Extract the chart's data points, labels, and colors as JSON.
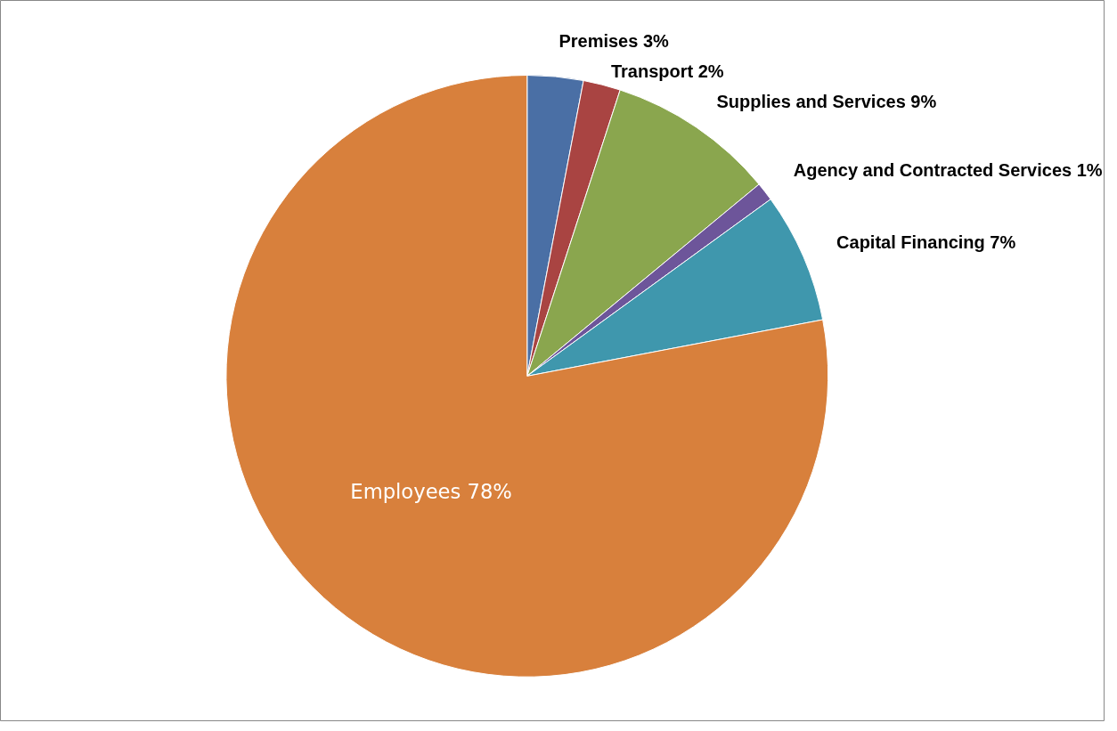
{
  "chart_data": {
    "type": "pie",
    "categories": [
      "Premises",
      "Transport",
      "Supplies and Services",
      "Agency and Contracted Services",
      "Capital Financing",
      "Employees"
    ],
    "values": [
      3,
      2,
      9,
      1,
      7,
      78
    ],
    "value_labels": [
      "3%",
      "2%",
      "9%",
      "1%",
      "7%",
      "78%"
    ],
    "colors": [
      "#4a6fa5",
      "#a94442",
      "#8aa64e",
      "#6d559a",
      "#3f97ad",
      "#d8803c"
    ]
  }
}
